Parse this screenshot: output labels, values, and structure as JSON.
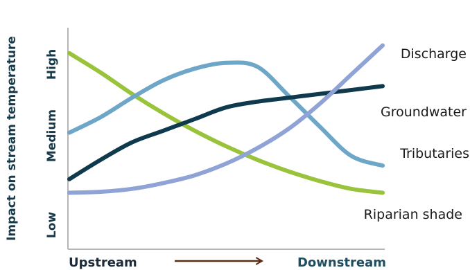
{
  "chart_data": {
    "type": "line",
    "ylabel": "Impact on stream temperature",
    "y_ticks": [
      "Low",
      "Medium",
      "High"
    ],
    "x_start_label": "Upstream",
    "x_end_label": "Downstream",
    "xlim": [
      0,
      1
    ],
    "ylim": [
      0,
      1
    ],
    "grid": false,
    "legend": "inline labels at line ends",
    "colors": {
      "axis": "#b5b5b5",
      "text_dark": "#1a2b3c",
      "text_blue": "#1f4e63",
      "arrow": "#5a2a12",
      "discharge": "#8fa3d6",
      "groundwater": "#0f3a4e",
      "tributaries": "#6ea6c8",
      "riparian": "#9ac33c"
    },
    "series": [
      {
        "name": "Discharge",
        "color_key": "discharge",
        "x": [
          0,
          0.1,
          0.2,
          0.3,
          0.4,
          0.5,
          0.6,
          0.7,
          0.8,
          0.9,
          1.0
        ],
        "y": [
          0.22,
          0.225,
          0.24,
          0.27,
          0.31,
          0.37,
          0.45,
          0.55,
          0.68,
          0.83,
          0.98
        ]
      },
      {
        "name": "Groundwater",
        "color_key": "groundwater",
        "x": [
          0,
          0.1,
          0.2,
          0.3,
          0.4,
          0.5,
          0.6,
          0.7,
          0.8,
          0.9,
          1.0
        ],
        "y": [
          0.29,
          0.39,
          0.48,
          0.54,
          0.6,
          0.66,
          0.69,
          0.71,
          0.73,
          0.75,
          0.77
        ]
      },
      {
        "name": "Tributaries",
        "color_key": "tributaries",
        "x": [
          0,
          0.1,
          0.2,
          0.3,
          0.4,
          0.5,
          0.6,
          0.7,
          0.8,
          0.9,
          1.0
        ],
        "y": [
          0.53,
          0.61,
          0.71,
          0.8,
          0.86,
          0.89,
          0.87,
          0.72,
          0.56,
          0.41,
          0.36
        ]
      },
      {
        "name": "Riparian shade",
        "color_key": "riparian",
        "x": [
          0,
          0.1,
          0.2,
          0.3,
          0.4,
          0.5,
          0.6,
          0.7,
          0.8,
          0.9,
          1.0
        ],
        "y": [
          0.94,
          0.84,
          0.73,
          0.63,
          0.54,
          0.46,
          0.39,
          0.33,
          0.28,
          0.24,
          0.22
        ]
      }
    ]
  }
}
